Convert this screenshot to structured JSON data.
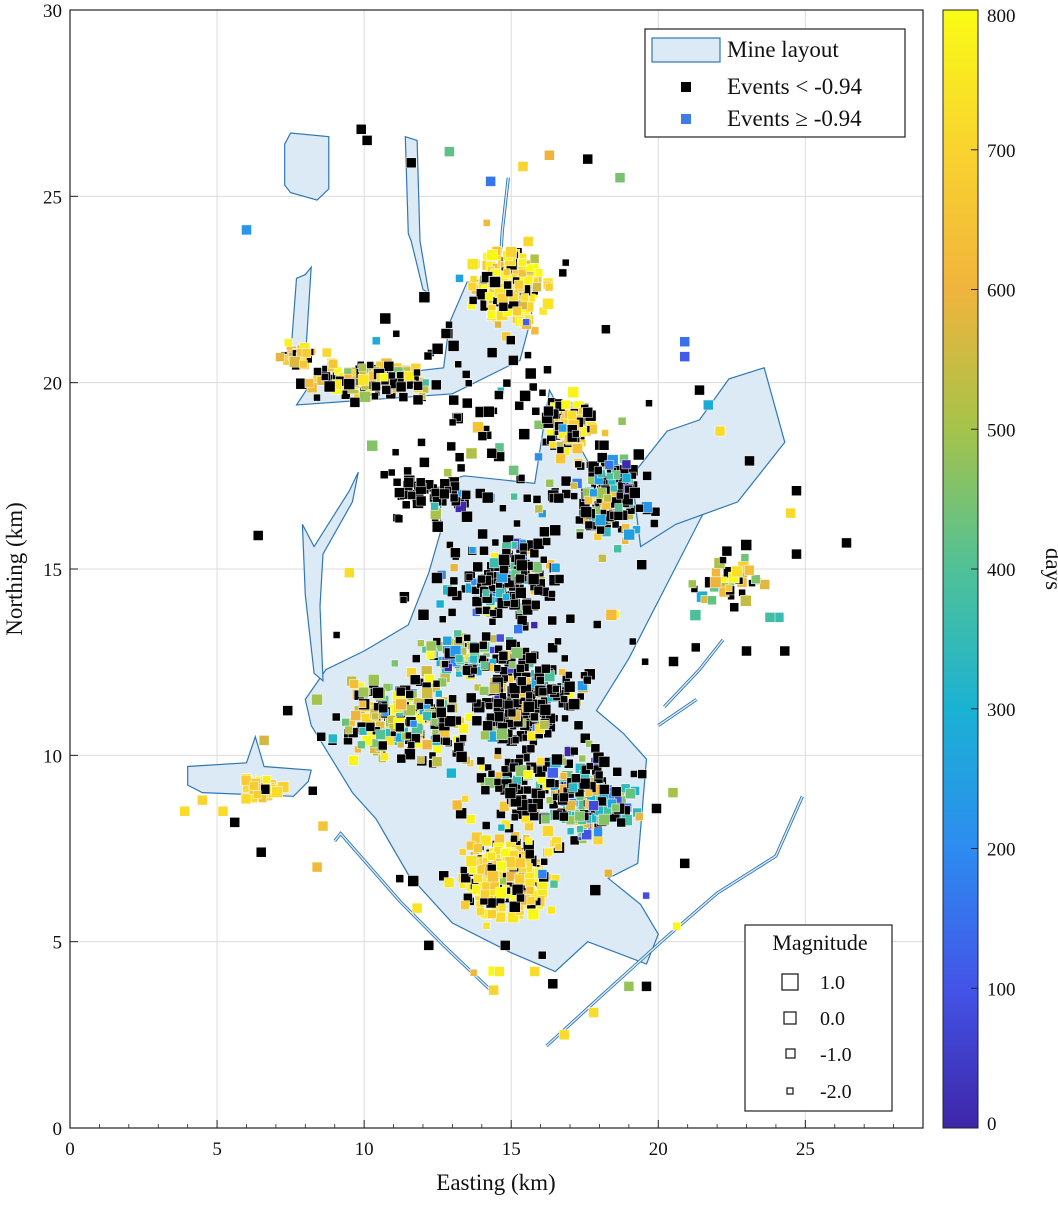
{
  "chart_data": {
    "type": "scatter",
    "title": "",
    "xlabel": "Easting (km)",
    "ylabel": "Northing (km)",
    "xlim": [
      0,
      29
    ],
    "ylim": [
      0,
      30
    ],
    "xticks": [
      0,
      5,
      10,
      15,
      20,
      25
    ],
    "xtick_labels": [
      "0",
      "5",
      "10",
      "15",
      "20",
      "25"
    ],
    "yticks": [
      0,
      5,
      10,
      15,
      20,
      25,
      30
    ],
    "ytick_labels": [
      "0",
      "5",
      "10",
      "15",
      "20",
      "25",
      "30"
    ],
    "grid": true,
    "legend": {
      "placement": "top-right",
      "entries": [
        {
          "label": "Mine layout",
          "kind": "patch",
          "fill": "#dceaf5",
          "edge": "#2f78b4"
        },
        {
          "label": "Events < -0.94",
          "kind": "marker",
          "color": "#000000"
        },
        {
          "label": "Events ≥ -0.94",
          "kind": "marker",
          "color": "#3d7de6"
        }
      ]
    },
    "colorbar": {
      "label": "days",
      "range": [
        0,
        800
      ],
      "ticks": [
        0,
        100,
        200,
        300,
        400,
        500,
        600,
        700,
        800
      ],
      "tick_labels": [
        "0",
        "100",
        "200",
        "300",
        "400",
        "500",
        "600",
        "700",
        "800"
      ],
      "colormap": [
        "#3e26a8",
        "#4354e8",
        "#2d8cf0",
        "#1ab2d3",
        "#4fc197",
        "#a5c34a",
        "#f0b43c",
        "#f9d32f",
        "#f9fb15"
      ]
    },
    "magnitude_legend": {
      "title": "Magnitude",
      "placement": "bottom-right",
      "entries": [
        {
          "label": "1.0",
          "magnitude": 1.0
        },
        {
          "label": "0.0",
          "magnitude": 0.0
        },
        {
          "label": "-1.0",
          "magnitude": -1.0
        },
        {
          "label": "-2.0",
          "magnitude": -2.0
        }
      ]
    },
    "mine_layout": [
      {
        "name": "main-body",
        "points": [
          [
            12.6,
            17.3
          ],
          [
            13.4,
            17.5
          ],
          [
            15.8,
            17.3
          ],
          [
            16.3,
            19.8
          ],
          [
            17.8,
            17.6
          ],
          [
            19.1,
            17.5
          ],
          [
            20.5,
            18.5
          ],
          [
            21.9,
            19.0
          ],
          [
            22.3,
            20.0
          ],
          [
            23.6,
            20.2
          ],
          [
            24.2,
            18.5
          ],
          [
            22.4,
            17.0
          ],
          [
            21.6,
            16.6
          ],
          [
            19.0,
            12.6
          ],
          [
            17.9,
            11.2
          ],
          [
            18.8,
            10.6
          ],
          [
            19.6,
            9.9
          ],
          [
            19.3,
            7.1
          ],
          [
            18.3,
            6.7
          ],
          [
            19.4,
            6.0
          ],
          [
            20.0,
            5.2
          ],
          [
            19.6,
            4.4
          ],
          [
            17.6,
            5.0
          ],
          [
            16.5,
            4.2
          ],
          [
            15.0,
            4.7
          ],
          [
            13.0,
            5.5
          ],
          [
            11.5,
            6.8
          ],
          [
            10.4,
            8.3
          ],
          [
            9.6,
            9.0
          ],
          [
            8.2,
            10.8
          ],
          [
            8.0,
            11.5
          ],
          [
            8.7,
            12.3
          ],
          [
            10.0,
            12.8
          ],
          [
            11.5,
            13.5
          ],
          [
            12.2,
            14.9
          ],
          [
            12.6,
            16.0
          ]
        ]
      },
      {
        "name": "north-arm",
        "points": [
          [
            7.7,
            19.4
          ],
          [
            8.2,
            20.0
          ],
          [
            12.7,
            20.4
          ],
          [
            12.9,
            21.6
          ],
          [
            13.5,
            22.7
          ],
          [
            15.6,
            22.9
          ],
          [
            15.7,
            21.8
          ],
          [
            15.3,
            20.6
          ],
          [
            13.0,
            19.7
          ]
        ]
      },
      {
        "name": "north-drift-west",
        "points": [
          [
            7.5,
            20.7
          ],
          [
            7.7,
            22.8
          ],
          [
            8.0,
            22.9
          ],
          [
            8.2,
            23.1
          ],
          [
            8.0,
            20.6
          ]
        ]
      },
      {
        "name": "north-block",
        "points": [
          [
            7.3,
            25.3
          ],
          [
            7.3,
            26.4
          ],
          [
            7.5,
            26.7
          ],
          [
            8.8,
            26.6
          ],
          [
            8.8,
            25.2
          ],
          [
            8.4,
            24.9
          ],
          [
            7.5,
            25.1
          ]
        ]
      },
      {
        "name": "north-drift-east",
        "points": [
          [
            11.4,
            26.6
          ],
          [
            11.5,
            24.0
          ],
          [
            11.6,
            23.8
          ],
          [
            12.0,
            22.5
          ],
          [
            12.2,
            22.4
          ],
          [
            11.9,
            23.8
          ],
          [
            11.8,
            26.5
          ]
        ]
      },
      {
        "name": "west-extension",
        "points": [
          [
            4.0,
            9.7
          ],
          [
            4.0,
            9.2
          ],
          [
            4.5,
            9.0
          ],
          [
            7.6,
            8.9
          ],
          [
            8.1,
            9.3
          ],
          [
            8.2,
            9.6
          ],
          [
            6.6,
            9.7
          ],
          [
            6.3,
            10.5
          ],
          [
            6.0,
            9.8
          ]
        ]
      },
      {
        "name": "west-drift",
        "points": [
          [
            7.9,
            16.2
          ],
          [
            8.0,
            14.3
          ],
          [
            8.3,
            12.2
          ],
          [
            8.6,
            12.0
          ],
          [
            8.5,
            14.0
          ],
          [
            8.6,
            15.4
          ],
          [
            9.6,
            16.8
          ],
          [
            9.8,
            17.6
          ],
          [
            9.5,
            17.1
          ],
          [
            8.3,
            15.6
          ]
        ]
      },
      {
        "name": "northeast-lobe",
        "points": [
          [
            19.1,
            17.5
          ],
          [
            20.3,
            18.7
          ],
          [
            21.4,
            19.0
          ],
          [
            22.4,
            20.1
          ],
          [
            23.6,
            20.4
          ],
          [
            24.3,
            18.4
          ],
          [
            22.7,
            16.8
          ],
          [
            20.6,
            16.2
          ],
          [
            19.4,
            15.6
          ]
        ]
      }
    ],
    "drift_lines": [
      {
        "name": "south-drift",
        "points": [
          [
            9.0,
            7.7
          ],
          [
            9.2,
            7.9
          ],
          [
            11.2,
            6.1
          ],
          [
            12.7,
            4.9
          ],
          [
            14.3,
            3.7
          ]
        ]
      },
      {
        "name": "southeast-drift",
        "points": [
          [
            16.2,
            2.2
          ],
          [
            18.0,
            3.5
          ],
          [
            20.1,
            5.0
          ],
          [
            22.0,
            6.3
          ],
          [
            23.2,
            6.9
          ],
          [
            24.0,
            7.3
          ],
          [
            24.9,
            8.9
          ]
        ]
      },
      {
        "name": "east-spur-1",
        "points": [
          [
            20.2,
            11.3
          ],
          [
            21.4,
            12.3
          ],
          [
            22.2,
            13.1
          ]
        ]
      },
      {
        "name": "east-spur-2",
        "points": [
          [
            20.0,
            10.8
          ],
          [
            21.3,
            11.5
          ]
        ]
      },
      {
        "name": "north-drift-center",
        "points": [
          [
            14.9,
            25.5
          ],
          [
            14.7,
            24.1
          ],
          [
            14.6,
            22.9
          ]
        ]
      }
    ],
    "clusters": [
      {
        "cx": 15.0,
        "cy": 22.6,
        "sx": 0.9,
        "sy": 0.8,
        "n": 260,
        "days_mean": 720,
        "days_sd": 70,
        "p_black": 0.12
      },
      {
        "cx": 10.2,
        "cy": 20.1,
        "sx": 1.6,
        "sy": 0.35,
        "n": 180,
        "days_mean": 630,
        "days_sd": 120,
        "p_black": 0.45
      },
      {
        "cx": 7.9,
        "cy": 20.7,
        "sx": 0.6,
        "sy": 0.2,
        "n": 35,
        "days_mean": 650,
        "days_sd": 80,
        "p_black": 0.25
      },
      {
        "cx": 17.0,
        "cy": 18.8,
        "sx": 0.7,
        "sy": 0.6,
        "n": 120,
        "days_mean": 690,
        "days_sd": 90,
        "p_black": 0.35
      },
      {
        "cx": 18.3,
        "cy": 16.9,
        "sx": 0.9,
        "sy": 0.9,
        "n": 170,
        "days_mean": 450,
        "days_sd": 200,
        "p_black": 0.6
      },
      {
        "cx": 14.8,
        "cy": 14.7,
        "sx": 1.5,
        "sy": 0.9,
        "n": 160,
        "days_mean": 420,
        "days_sd": 230,
        "p_black": 0.7
      },
      {
        "cx": 13.4,
        "cy": 12.7,
        "sx": 1.2,
        "sy": 0.5,
        "n": 90,
        "days_mean": 420,
        "days_sd": 180,
        "p_black": 0.25
      },
      {
        "cx": 11.4,
        "cy": 11.0,
        "sx": 1.8,
        "sy": 0.9,
        "n": 230,
        "days_mean": 580,
        "days_sd": 160,
        "p_black": 0.45
      },
      {
        "cx": 15.5,
        "cy": 11.4,
        "sx": 1.3,
        "sy": 1.0,
        "n": 220,
        "days_mean": 520,
        "days_sd": 220,
        "p_black": 0.75
      },
      {
        "cx": 17.6,
        "cy": 8.7,
        "sx": 1.0,
        "sy": 0.7,
        "n": 160,
        "days_mean": 360,
        "days_sd": 160,
        "p_black": 0.25
      },
      {
        "cx": 14.8,
        "cy": 6.8,
        "sx": 1.2,
        "sy": 0.9,
        "n": 280,
        "days_mean": 720,
        "days_sd": 70,
        "p_black": 0.18
      },
      {
        "cx": 6.5,
        "cy": 9.1,
        "sx": 0.5,
        "sy": 0.3,
        "n": 45,
        "days_mean": 690,
        "days_sd": 60,
        "p_black": 0.08
      },
      {
        "cx": 12.5,
        "cy": 17.0,
        "sx": 1.3,
        "sy": 0.4,
        "n": 50,
        "days_mean": 300,
        "days_sd": 200,
        "p_black": 0.85
      },
      {
        "cx": 22.5,
        "cy": 14.6,
        "sx": 0.8,
        "sy": 0.6,
        "n": 40,
        "days_mean": 580,
        "days_sd": 150,
        "p_black": 0.3
      },
      {
        "cx": 16.0,
        "cy": 9.3,
        "sx": 2.5,
        "sy": 0.8,
        "n": 120,
        "days_mean": 450,
        "days_sd": 230,
        "p_black": 0.7
      },
      {
        "cx": 14.0,
        "cy": 18.5,
        "sx": 3.0,
        "sy": 3.5,
        "n": 90,
        "days_mean": 400,
        "days_sd": 230,
        "p_black": 0.8
      },
      {
        "cx": 16.0,
        "cy": 12.0,
        "sx": 5.0,
        "sy": 6.0,
        "n": 100,
        "days_mean": 450,
        "days_sd": 250,
        "p_black": 0.75
      }
    ],
    "isolated_events": [
      {
        "x": 6.0,
        "y": 24.1,
        "days": 220
      },
      {
        "x": 12.9,
        "y": 26.2,
        "days": 420
      },
      {
        "x": 16.3,
        "y": 26.1,
        "days": 600
      },
      {
        "x": 15.4,
        "y": 25.8,
        "days": 700
      },
      {
        "x": 18.7,
        "y": 25.5,
        "days": 450
      },
      {
        "x": 14.3,
        "y": 25.4,
        "days": 160
      },
      {
        "x": 17.6,
        "y": 26.0,
        "days": -1
      },
      {
        "x": 9.9,
        "y": 26.8,
        "days": -1
      },
      {
        "x": 10.1,
        "y": 26.5,
        "days": -1
      },
      {
        "x": 11.6,
        "y": 25.9,
        "days": -1
      },
      {
        "x": 20.9,
        "y": 21.1,
        "days": 150
      },
      {
        "x": 20.9,
        "y": 20.7,
        "days": 110
      },
      {
        "x": 21.4,
        "y": 19.8,
        "days": -1
      },
      {
        "x": 21.7,
        "y": 19.4,
        "days": 280
      },
      {
        "x": 22.1,
        "y": 18.7,
        "days": 720
      },
      {
        "x": 23.1,
        "y": 17.9,
        "days": -1
      },
      {
        "x": 26.4,
        "y": 15.7,
        "days": -1
      },
      {
        "x": 24.7,
        "y": 15.4,
        "days": -1
      },
      {
        "x": 24.7,
        "y": 17.1,
        "days": -1
      },
      {
        "x": 24.5,
        "y": 16.5,
        "days": 720
      },
      {
        "x": 24.1,
        "y": 13.7,
        "days": 360
      },
      {
        "x": 23.8,
        "y": 13.7,
        "days": 380
      },
      {
        "x": 24.3,
        "y": 12.8,
        "days": -1
      },
      {
        "x": 23.0,
        "y": 12.8,
        "days": -1
      },
      {
        "x": 20.5,
        "y": 9.0,
        "days": 500
      },
      {
        "x": 20.9,
        "y": 7.1,
        "days": -1
      },
      {
        "x": 19.6,
        "y": 3.8,
        "days": -1
      },
      {
        "x": 19.0,
        "y": 3.8,
        "days": 480
      },
      {
        "x": 17.8,
        "y": 3.1,
        "days": 720
      },
      {
        "x": 16.8,
        "y": 2.5,
        "days": 720
      },
      {
        "x": 14.6,
        "y": 4.2,
        "days": 760
      },
      {
        "x": 14.4,
        "y": 3.7,
        "days": 700
      },
      {
        "x": 15.8,
        "y": 4.2,
        "days": 720
      },
      {
        "x": 3.9,
        "y": 8.5,
        "days": 720
      },
      {
        "x": 4.5,
        "y": 8.8,
        "days": 700
      },
      {
        "x": 5.2,
        "y": 8.5,
        "days": 720
      },
      {
        "x": 5.6,
        "y": 8.2,
        "days": -1
      },
      {
        "x": 6.5,
        "y": 7.4,
        "days": -1
      },
      {
        "x": 8.4,
        "y": 7.0,
        "days": 620
      },
      {
        "x": 8.6,
        "y": 8.1,
        "days": 650
      },
      {
        "x": 6.6,
        "y": 10.4,
        "days": 560
      },
      {
        "x": 6.4,
        "y": 15.9,
        "days": -1
      },
      {
        "x": 9.5,
        "y": 14.9,
        "days": 720
      },
      {
        "x": 7.4,
        "y": 11.2,
        "days": -1
      },
      {
        "x": 11.8,
        "y": 5.9,
        "days": 740
      },
      {
        "x": 12.2,
        "y": 4.9,
        "days": -1
      },
      {
        "x": 14.8,
        "y": 4.9,
        "days": -1
      }
    ]
  }
}
